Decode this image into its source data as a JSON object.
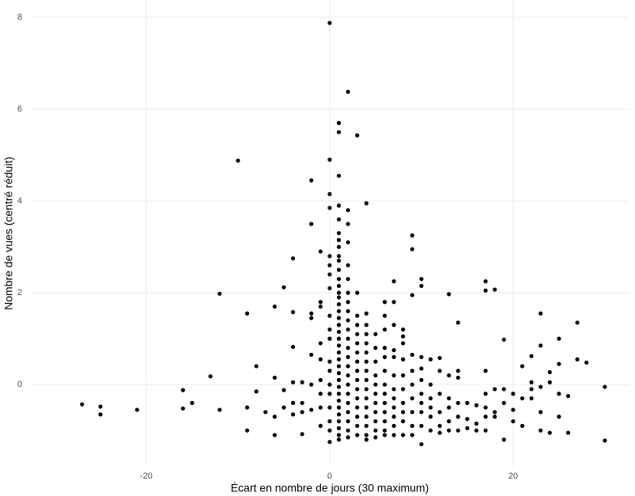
{
  "chart_data": {
    "type": "scatter",
    "x_label": "Écart en nombre de jours (30 maximum)",
    "y_label": "Nombre de vues (centré réduit)",
    "color": "#000000",
    "grid": true,
    "xlim": [
      -32.5,
      32.6
    ],
    "ylim": [
      -1.79,
      8.38
    ],
    "xticks": [
      -20,
      0,
      20
    ],
    "yticks": [
      0,
      2,
      4,
      6,
      8
    ],
    "x": [
      -27,
      -25,
      -25,
      -21,
      -16,
      -16,
      -15,
      -13,
      -12,
      -12,
      -10,
      -9,
      -9,
      -9,
      -8,
      -8,
      -7,
      -6,
      -6,
      -6,
      -6,
      -5,
      -5,
      -5,
      -4,
      -4,
      -4,
      -4,
      -4,
      -4,
      -3,
      -3,
      -3,
      -3,
      -2,
      -2,
      -2,
      -2,
      -2,
      -2,
      -2,
      -1,
      -1,
      -1,
      -1,
      -1,
      -1,
      -1,
      -1,
      -1,
      0,
      0,
      0,
      0,
      0,
      0,
      0,
      0,
      0,
      0,
      0,
      0,
      0,
      0,
      0,
      0,
      0,
      0,
      0,
      1,
      1,
      1,
      1,
      1,
      1,
      1,
      1,
      1,
      1,
      1,
      1,
      1,
      1,
      1,
      1,
      1,
      1,
      1,
      1,
      1,
      1,
      1,
      1,
      1,
      1,
      1,
      1,
      1,
      1,
      1,
      1,
      1,
      1,
      1,
      1,
      2,
      2,
      2,
      2,
      2,
      2,
      2,
      2,
      2,
      2,
      2,
      2,
      2,
      2,
      2,
      2,
      2,
      2,
      2,
      2,
      2,
      2,
      2,
      3,
      3,
      3,
      3,
      3,
      3,
      3,
      3,
      3,
      3,
      3,
      3,
      3,
      3,
      3,
      3,
      4,
      4,
      4,
      4,
      4,
      4,
      4,
      4,
      4,
      4,
      4,
      4,
      4,
      4,
      4,
      4,
      5,
      5,
      5,
      5,
      5,
      5,
      5,
      5,
      5,
      5,
      5,
      6,
      6,
      6,
      6,
      6,
      6,
      6,
      6,
      6,
      6,
      6,
      6,
      6,
      7,
      7,
      7,
      7,
      7,
      7,
      7,
      7,
      7,
      7,
      7,
      7,
      8,
      8,
      8,
      8,
      8,
      8,
      8,
      8,
      8,
      8,
      9,
      9,
      9,
      9,
      9,
      9,
      9,
      9,
      9,
      9,
      10,
      10,
      10,
      10,
      10,
      10,
      10,
      10,
      10,
      10,
      11,
      11,
      11,
      11,
      11,
      11,
      12,
      12,
      12,
      12,
      12,
      12,
      13,
      13,
      13,
      13,
      13,
      13,
      14,
      14,
      14,
      14,
      14,
      14,
      15,
      15,
      15,
      16,
      16,
      16,
      17,
      17,
      17,
      17,
      17,
      17,
      17,
      18,
      18,
      18,
      18,
      19,
      19,
      19,
      19,
      20,
      20,
      20,
      21,
      21,
      21,
      22,
      22,
      22,
      22,
      23,
      23,
      23,
      23,
      23,
      24,
      24,
      24,
      25,
      25,
      25,
      25,
      26,
      26,
      27,
      27,
      28,
      30,
      30
    ],
    "values": [
      -0.43,
      -0.48,
      -0.65,
      -0.55,
      -0.12,
      -0.52,
      -0.4,
      0.18,
      1.98,
      -0.55,
      4.88,
      1.55,
      -0.5,
      -1.0,
      0.4,
      -0.15,
      -0.6,
      1.7,
      0.15,
      -0.7,
      -1.1,
      2.12,
      -0.12,
      -0.5,
      2.75,
      1.58,
      0.82,
      0.05,
      -0.4,
      -0.65,
      0.05,
      -0.4,
      -0.6,
      -1.08,
      4.45,
      3.5,
      1.55,
      1.45,
      0.65,
      0.0,
      -0.55,
      2.9,
      1.8,
      1.7,
      0.9,
      0.55,
      0.1,
      -0.2,
      -0.5,
      -0.9,
      7.88,
      4.9,
      4.15,
      3.85,
      2.8,
      2.6,
      2.4,
      2.1,
      1.5,
      1.2,
      1.0,
      0.5,
      0.3,
      0.0,
      -0.2,
      -0.5,
      -0.8,
      -1.0,
      -1.25,
      5.7,
      5.5,
      4.55,
      3.9,
      3.6,
      3.3,
      3.15,
      3.0,
      2.8,
      2.7,
      2.5,
      2.3,
      2.15,
      2.0,
      1.9,
      1.75,
      1.6,
      1.45,
      1.3,
      1.15,
      1.0,
      0.85,
      0.7,
      0.55,
      0.4,
      0.25,
      0.1,
      -0.05,
      -0.2,
      -0.35,
      -0.5,
      -0.65,
      -0.8,
      -0.95,
      -1.1,
      -1.2,
      6.38,
      3.8,
      3.5,
      3.1,
      2.6,
      2.3,
      2.0,
      1.8,
      1.6,
      1.4,
      1.2,
      1.0,
      0.8,
      0.6,
      0.4,
      0.2,
      0.0,
      -0.2,
      -0.4,
      -0.6,
      -0.8,
      -1.0,
      -1.15,
      5.43,
      2.0,
      1.5,
      1.3,
      1.1,
      0.9,
      0.7,
      0.5,
      0.3,
      0.1,
      -0.1,
      -0.3,
      -0.5,
      -0.7,
      -0.9,
      -1.1,
      3.95,
      1.55,
      1.3,
      1.1,
      0.9,
      0.7,
      0.5,
      0.3,
      0.1,
      -0.1,
      -0.3,
      -0.5,
      -0.7,
      -0.9,
      -1.1,
      -1.2,
      1.1,
      0.8,
      0.5,
      0.2,
      0.0,
      -0.2,
      -0.4,
      -0.6,
      -0.8,
      -1.0,
      -1.15,
      1.8,
      1.5,
      1.2,
      0.8,
      0.6,
      0.3,
      0.0,
      -0.2,
      -0.4,
      -0.6,
      -0.8,
      -1.0,
      -1.1,
      2.25,
      1.8,
      1.3,
      0.75,
      0.6,
      0.2,
      -0.1,
      -0.3,
      -0.5,
      -0.7,
      -0.9,
      -1.1,
      1.2,
      1.05,
      0.9,
      0.55,
      0.2,
      -0.1,
      -0.4,
      -0.6,
      -0.8,
      -1.1,
      3.25,
      2.95,
      1.95,
      0.65,
      0.3,
      0.0,
      -0.3,
      -0.6,
      -0.9,
      -1.1,
      2.3,
      2.15,
      0.6,
      0.35,
      0.1,
      -0.2,
      -0.4,
      -0.6,
      -0.9,
      -1.3,
      0.55,
      0.0,
      -0.3,
      -0.5,
      -0.7,
      -1.0,
      0.58,
      0.3,
      -0.2,
      -0.6,
      -0.9,
      -1.05,
      1.97,
      0.2,
      -0.3,
      -0.5,
      -0.8,
      -1.0,
      1.35,
      0.3,
      0.15,
      -0.4,
      -0.7,
      -1.0,
      -0.4,
      -0.75,
      -0.95,
      -0.45,
      -0.85,
      -1.0,
      2.25,
      2.05,
      0.3,
      -0.2,
      -0.5,
      -0.7,
      -1.0,
      2.07,
      -0.1,
      -0.6,
      -0.7,
      0.98,
      -0.1,
      -0.4,
      -1.2,
      -0.2,
      -0.55,
      -0.8,
      0.4,
      -0.3,
      -0.9,
      0.62,
      0.05,
      -0.1,
      -0.3,
      1.55,
      0.85,
      -0.05,
      -0.6,
      -1.0,
      0.27,
      0.05,
      -1.05,
      1.0,
      0.45,
      -0.2,
      -0.7,
      -0.25,
      -1.05,
      1.35,
      0.55,
      0.48,
      -0.05,
      -1.22
    ]
  }
}
